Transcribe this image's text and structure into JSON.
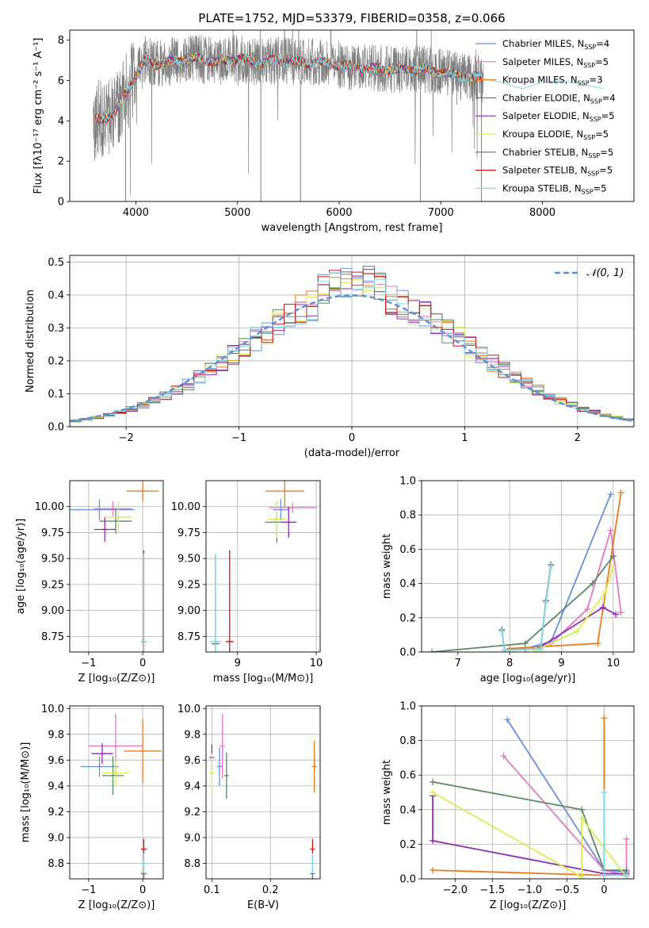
{
  "colors": {
    "Chabrier MILES": "#6a8fdc",
    "Salpeter MILES": "#e377c2",
    "Kroupa MILES": "#e87a1e",
    "Chabrier ELODIE": "#5a8a64",
    "Salpeter ELODIE": "#8e2ab3",
    "Kroupa ELODIE": "#d7ee50",
    "Chabrier STELIB": "#6b6b6b",
    "Salpeter STELIB": "#c81414",
    "Kroupa STELIB": "#7fd8e8",
    "data": "#808080",
    "normal": "#5b8fd6"
  },
  "legend_ssp": {
    "title": "PLATE=1752, MJD=53379, FIBERID=0358, z=0.066",
    "entries": [
      {
        "model": "Chabrier MILES",
        "nssp": "4"
      },
      {
        "model": "Salpeter MILES",
        "nssp": "5"
      },
      {
        "model": "Kroupa MILES",
        "nssp": "3"
      },
      {
        "model": "Chabrier ELODIE",
        "nssp": "4"
      },
      {
        "model": "Salpeter ELODIE",
        "nssp": "5"
      },
      {
        "model": "Kroupa ELODIE",
        "nssp": "5"
      },
      {
        "model": "Chabrier STELIB",
        "nssp": "5"
      },
      {
        "model": "Salpeter STELIB",
        "nssp": "5"
      },
      {
        "model": "Kroupa STELIB",
        "nssp": "5"
      }
    ],
    "nssp_prefix": "N",
    "nssp_sub": "SSP"
  },
  "chart_data": [
    {
      "id": "spectrum",
      "type": "line",
      "title": "PLATE=1752, MJD=53379, FIBERID=0358, z=0.066",
      "xlabel": "wavelength [Angstrom, rest frame]",
      "ylabel": "Flux [fλ10⁻¹⁷ erg cm⁻² s⁻¹ A⁻¹]",
      "xlim": [
        3350,
        8900
      ],
      "ylim": [
        0,
        8.5
      ],
      "xticks": [
        4000,
        5000,
        6000,
        7000,
        8000
      ],
      "yticks": [
        0,
        2,
        4,
        6,
        8
      ],
      "grid": false,
      "legend": "top-right",
      "continuum": {
        "x": [
          3600,
          3700,
          3800,
          3900,
          4000,
          4100,
          4200,
          4400,
          4600,
          4800,
          5000,
          5200,
          5400,
          5600,
          5800,
          6000,
          6200,
          6400,
          6600,
          6800,
          7000,
          7200,
          7400
        ],
        "y": [
          4.0,
          4.2,
          4.4,
          5.4,
          6.2,
          7.1,
          6.8,
          7.0,
          7.1,
          6.9,
          7.1,
          6.9,
          7.0,
          6.9,
          6.9,
          6.8,
          6.6,
          6.6,
          6.5,
          6.6,
          6.4,
          6.2,
          6.1
        ]
      },
      "data_range": [
        3580,
        7420
      ],
      "model_extension": {
        "x": [
          7400,
          7600,
          7800,
          8000,
          8200,
          8400,
          8600
        ],
        "y": [
          6.1,
          5.9,
          5.6,
          5.9,
          6.0,
          5.8,
          5.6
        ]
      }
    },
    {
      "id": "residuals",
      "type": "bar",
      "xlabel": "(data-model)/error",
      "ylabel": "Normed distribution",
      "xlim": [
        -2.5,
        2.5
      ],
      "ylim": [
        0,
        0.52
      ],
      "xticks": [
        -2,
        -1,
        0,
        1,
        2
      ],
      "yticks": [
        0.0,
        0.1,
        0.2,
        0.3,
        0.4,
        0.5
      ],
      "grid": true,
      "legend": "top-right",
      "legend_label": "𝒩(0, 1)",
      "bin_width": 0.1
    },
    {
      "id": "age-vs-Z",
      "type": "scatter",
      "xlabel": "Z [log₁₀(Z/Z⊙)]",
      "ylabel": "age  [log₁₀(age/yr)]",
      "xlim": [
        -1.35,
        0.38
      ],
      "ylim": [
        8.6,
        10.25
      ],
      "xticks": [
        -1,
        0
      ],
      "yticks": [
        8.75,
        9.0,
        9.25,
        9.5,
        9.75,
        10.0
      ],
      "grid": true,
      "points": [
        {
          "model": "Chabrier MILES",
          "x": -0.8,
          "xerr": 0.65,
          "y": 9.97,
          "yerr": 0.1
        },
        {
          "model": "Salpeter MILES",
          "x": -0.55,
          "xerr": 0.35,
          "y": 9.98,
          "yerr": 0.07
        },
        {
          "model": "Kroupa MILES",
          "x": 0.0,
          "xerr": 0.3,
          "y": 10.15,
          "yerr": 0.1
        },
        {
          "model": "Chabrier ELODIE",
          "x": -0.5,
          "xerr": 0.3,
          "y": 9.86,
          "yerr": 0.12
        },
        {
          "model": "Salpeter ELODIE",
          "x": -0.7,
          "xerr": 0.2,
          "y": 9.78,
          "yerr": 0.12
        },
        {
          "model": "Kroupa ELODIE",
          "x": -0.45,
          "xerr": 0.25,
          "y": 9.9,
          "yerr": 0.15
        },
        {
          "model": "Chabrier STELIB",
          "x": 0.02,
          "xerr": 0.05,
          "y": 8.7,
          "yerr": 0.05
        },
        {
          "model": "Salpeter STELIB",
          "x": 0.02,
          "xerr": 0.05,
          "y": 8.7,
          "yerr": 0.88
        },
        {
          "model": "Kroupa STELIB",
          "x": 0.02,
          "xerr": 0.05,
          "y": 8.7,
          "yerr": 0.85
        }
      ]
    },
    {
      "id": "age-vs-mass",
      "type": "scatter",
      "xlabel": "mass [log₁₀(M/M⊙)]",
      "ylabel": "",
      "xlim": [
        8.6,
        10.05
      ],
      "ylim": [
        8.6,
        10.25
      ],
      "xticks": [
        9,
        10
      ],
      "yticks": [
        8.75,
        9.0,
        9.25,
        9.5,
        9.75,
        10.0
      ],
      "grid": true,
      "points": [
        {
          "model": "Chabrier MILES",
          "x": 9.55,
          "xerr": 0.1,
          "y": 9.97,
          "yerr": 0.1
        },
        {
          "model": "Salpeter MILES",
          "x": 9.7,
          "xerr": 0.3,
          "y": 9.99,
          "yerr": 0.05
        },
        {
          "model": "Kroupa MILES",
          "x": 9.6,
          "xerr": 0.25,
          "y": 10.15,
          "yerr": 0.15
        },
        {
          "model": "Chabrier ELODIE",
          "x": 9.5,
          "xerr": 0.15,
          "y": 9.85,
          "yerr": 0.2
        },
        {
          "model": "Salpeter ELODIE",
          "x": 9.65,
          "xerr": 0.1,
          "y": 9.85,
          "yerr": 0.15
        },
        {
          "model": "Kroupa ELODIE",
          "x": 9.5,
          "xerr": 0.12,
          "y": 9.88,
          "yerr": 0.18
        },
        {
          "model": "Chabrier STELIB",
          "x": 8.72,
          "xerr": 0.05,
          "y": 8.68,
          "yerr": 0.85
        },
        {
          "model": "Salpeter STELIB",
          "x": 8.9,
          "xerr": 0.05,
          "y": 8.7,
          "yerr": 0.88
        },
        {
          "model": "Kroupa STELIB",
          "x": 8.72,
          "xerr": 0.08,
          "y": 8.7,
          "yerr": 0.85
        }
      ]
    },
    {
      "id": "weight-vs-age",
      "type": "line",
      "xlabel": "age  [log₁₀(age/yr)]",
      "ylabel": "mass weight",
      "xlim": [
        6.3,
        10.4
      ],
      "ylim": [
        0,
        1.0
      ],
      "xticks": [
        7,
        8,
        9,
        10
      ],
      "yticks": [
        0.0,
        0.2,
        0.4,
        0.6,
        0.8,
        1.0
      ],
      "grid": true,
      "series": [
        {
          "model": "Chabrier MILES",
          "x": [
            8.3,
            8.8,
            9.95
          ],
          "y": [
            0.02,
            0.06,
            0.92
          ]
        },
        {
          "model": "Salpeter MILES",
          "x": [
            8.5,
            8.8,
            9.5,
            9.95,
            10.15
          ],
          "y": [
            0.01,
            0.05,
            0.25,
            0.71,
            0.23
          ]
        },
        {
          "model": "Kroupa MILES",
          "x": [
            8.0,
            9.7,
            10.15
          ],
          "y": [
            0.02,
            0.05,
            0.93
          ]
        },
        {
          "model": "Chabrier ELODIE",
          "x": [
            6.5,
            8.3,
            9.6,
            10.0
          ],
          "y": [
            0.0,
            0.05,
            0.4,
            0.56
          ]
        },
        {
          "model": "Salpeter ELODIE",
          "x": [
            8.6,
            9.8,
            10.05
          ],
          "y": [
            0.03,
            0.26,
            0.22
          ]
        },
        {
          "model": "Kroupa ELODIE",
          "x": [
            8.5,
            9.3,
            9.85,
            10.0
          ],
          "y": [
            0.01,
            0.12,
            0.35,
            0.5
          ]
        },
        {
          "model": "Chabrier STELIB",
          "x": [
            7.85,
            7.9,
            8.6,
            8.7,
            8.8
          ],
          "y": [
            0.13,
            0.01,
            0.02,
            0.3,
            0.51
          ]
        },
        {
          "model": "Kroupa STELIB",
          "x": [
            7.85,
            7.9,
            8.6,
            8.7,
            8.8
          ],
          "y": [
            0.12,
            0.01,
            0.02,
            0.29,
            0.5
          ]
        }
      ]
    },
    {
      "id": "mass-vs-Z",
      "type": "scatter",
      "xlabel": "Z [log₁₀(Z/Z⊙)]",
      "ylabel": "mass [log₁₀(M/M⊙)]",
      "xlim": [
        -1.35,
        0.38
      ],
      "ylim": [
        8.68,
        10.02
      ],
      "xticks": [
        -1,
        0
      ],
      "yticks": [
        8.8,
        9.0,
        9.2,
        9.4,
        9.6,
        9.8,
        10.0
      ],
      "grid": true,
      "points": [
        {
          "model": "Chabrier MILES",
          "x": -0.8,
          "xerr": 0.35,
          "y": 9.55,
          "yerr": 0.08
        },
        {
          "model": "Salpeter MILES",
          "x": -0.5,
          "xerr": 0.5,
          "y": 9.71,
          "yerr": 0.25
        },
        {
          "model": "Kroupa MILES",
          "x": 0.0,
          "xerr": 0.35,
          "y": 9.67,
          "yerr": 0.25
        },
        {
          "model": "Chabrier ELODIE",
          "x": -0.55,
          "xerr": 0.2,
          "y": 9.48,
          "yerr": 0.15
        },
        {
          "model": "Salpeter ELODIE",
          "x": -0.75,
          "xerr": 0.2,
          "y": 9.65,
          "yerr": 0.08
        },
        {
          "model": "Kroupa ELODIE",
          "x": -0.5,
          "xerr": 0.25,
          "y": 9.5,
          "yerr": 0.1
        },
        {
          "model": "Chabrier STELIB",
          "x": 0.02,
          "xerr": 0.05,
          "y": 8.72,
          "yerr": 0.05
        },
        {
          "model": "Salpeter STELIB",
          "x": 0.02,
          "xerr": 0.05,
          "y": 8.91,
          "yerr": 0.08
        },
        {
          "model": "Kroupa STELIB",
          "x": 0.02,
          "xerr": 0.05,
          "y": 8.8,
          "yerr": 0.08
        }
      ]
    },
    {
      "id": "mass-vs-EBV",
      "type": "scatter",
      "xlabel": "E(B-V)",
      "ylabel": "",
      "xlim": [
        0.09,
        0.285
      ],
      "ylim": [
        8.68,
        10.02
      ],
      "xticks": [
        0.1,
        0.2
      ],
      "yticks": [
        8.8,
        9.0,
        9.2,
        9.4,
        9.6,
        9.8,
        10.0
      ],
      "grid": true,
      "points": [
        {
          "model": "Chabrier MILES",
          "x": 0.113,
          "xerr": 0.0,
          "y": 9.55,
          "yerr": 0.15
        },
        {
          "model": "Salpeter MILES",
          "x": 0.118,
          "xerr": 0.0,
          "y": 9.71,
          "yerr": 0.25
        },
        {
          "model": "Kroupa MILES",
          "x": 0.275,
          "xerr": 0.0,
          "y": 9.55,
          "yerr": 0.2
        },
        {
          "model": "Chabrier ELODIE",
          "x": 0.125,
          "xerr": 0.0,
          "y": 9.48,
          "yerr": 0.18
        },
        {
          "model": "Salpeter ELODIE",
          "x": 0.1,
          "xerr": 0.0,
          "y": 9.62,
          "yerr": 0.1
        },
        {
          "model": "Kroupa ELODIE",
          "x": 0.1,
          "xerr": 0.0,
          "y": 9.5,
          "yerr": 0.15
        },
        {
          "model": "Chabrier STELIB",
          "x": 0.272,
          "xerr": 0.0,
          "y": 8.72,
          "yerr": 0.05
        },
        {
          "model": "Salpeter STELIB",
          "x": 0.272,
          "xerr": 0.0,
          "y": 8.91,
          "yerr": 0.08
        },
        {
          "model": "Kroupa STELIB",
          "x": 0.272,
          "xerr": 0.0,
          "y": 8.8,
          "yerr": 0.08
        }
      ]
    },
    {
      "id": "weight-vs-Z",
      "type": "line",
      "xlabel": "Z [log₁₀(Z/Z⊙)]",
      "ylabel": "mass weight",
      "xlim": [
        -2.45,
        0.4
      ],
      "ylim": [
        0,
        1.0
      ],
      "xticks": [
        -2.0,
        -1.5,
        -1.0,
        -0.5,
        0.0
      ],
      "yticks": [
        0.0,
        0.2,
        0.4,
        0.6,
        0.8,
        1.0
      ],
      "grid": true,
      "series": [
        {
          "model": "Chabrier MILES",
          "x": [
            -1.3,
            0.0,
            0.3
          ],
          "y": [
            0.92,
            0.05,
            0.04
          ]
        },
        {
          "model": "Salpeter MILES",
          "x": [
            -1.35,
            0.0,
            0.3,
            0.3
          ],
          "y": [
            0.71,
            0.05,
            0.02,
            0.23
          ]
        },
        {
          "model": "Kroupa MILES",
          "x": [
            -2.3,
            0.0,
            0.0
          ],
          "y": [
            0.05,
            0.02,
            0.93
          ]
        },
        {
          "model": "Chabrier ELODIE",
          "x": [
            -2.3,
            -0.3,
            0.0,
            0.3
          ],
          "y": [
            0.56,
            0.4,
            0.05,
            0.05
          ]
        },
        {
          "model": "Salpeter ELODIE",
          "x": [
            -2.3,
            -2.3,
            0.0,
            0.3
          ],
          "y": [
            0.48,
            0.22,
            0.03,
            0.03
          ]
        },
        {
          "model": "Kroupa ELODIE",
          "x": [
            -2.3,
            -0.3,
            -0.3,
            0.3
          ],
          "y": [
            0.5,
            0.01,
            0.35,
            0.01
          ]
        },
        {
          "model": "Kroupa STELIB",
          "x": [
            0.0,
            0.0,
            0.3
          ],
          "y": [
            0.5,
            0.02,
            0.02
          ]
        }
      ]
    }
  ]
}
